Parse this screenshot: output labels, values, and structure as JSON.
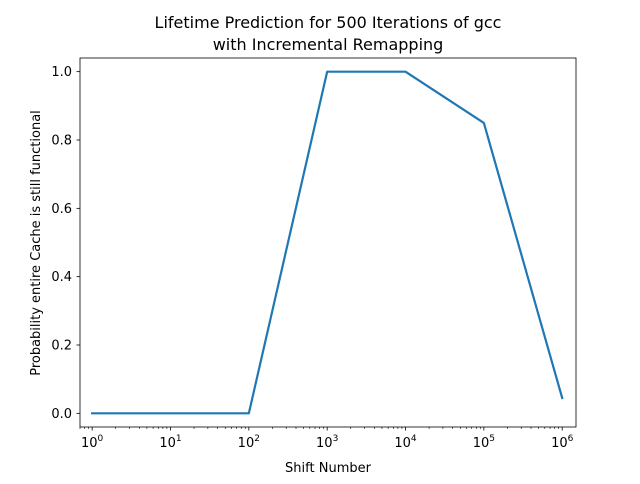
{
  "chart_data": {
    "type": "line",
    "title_line1": "Lifetime Prediction for 500 Iterations of gcc",
    "title_line2": "with Incremental Remapping",
    "xlabel": "Shift Number",
    "ylabel": "Probability entire Cache is still functional",
    "x_scale": "log",
    "xlim": [
      0.7,
      1500000
    ],
    "ylim": [
      -0.04,
      1.04
    ],
    "x_ticks": [
      {
        "exp": 0,
        "base": "10",
        "sup": "0"
      },
      {
        "exp": 1,
        "base": "10",
        "sup": "1"
      },
      {
        "exp": 2,
        "base": "10",
        "sup": "2"
      },
      {
        "exp": 3,
        "base": "10",
        "sup": "3"
      },
      {
        "exp": 4,
        "base": "10",
        "sup": "4"
      },
      {
        "exp": 5,
        "base": "10",
        "sup": "5"
      },
      {
        "exp": 6,
        "base": "10",
        "sup": "6"
      }
    ],
    "y_ticks": [
      {
        "value": 0.0,
        "label": "0.0"
      },
      {
        "value": 0.2,
        "label": "0.2"
      },
      {
        "value": 0.4,
        "label": "0.4"
      },
      {
        "value": 0.6,
        "label": "0.6"
      },
      {
        "value": 0.8,
        "label": "0.8"
      },
      {
        "value": 1.0,
        "label": "1.0"
      }
    ],
    "grid": false,
    "series": [
      {
        "color": "#1f77b4",
        "x": [
          1,
          10,
          100,
          1000,
          10000,
          100000,
          1000000
        ],
        "y": [
          0.0,
          0.0,
          0.0,
          1.0,
          1.0,
          0.85,
          0.045
        ]
      }
    ]
  }
}
